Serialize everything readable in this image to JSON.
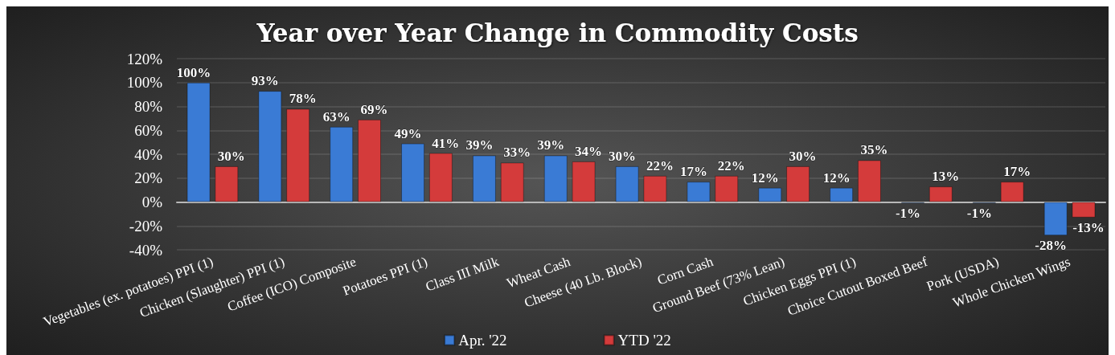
{
  "chart_data": {
    "type": "bar",
    "title": "Year over Year Change in Commodity Costs",
    "categories": [
      "Vegetables (ex. potatoes) PPI (1)",
      "Chicken (Slaughter) PPI (1)",
      "Coffee (ICO) Composite",
      "Potatoes PPI (1)",
      "Class III Milk",
      "Wheat Cash",
      "Cheese (40 Lb. Block)",
      "Corn Cash",
      "Ground Beef (73% Lean)",
      "Chicken Eggs PPI (1)",
      "Choice Cutout Boxed Beef",
      "Pork (USDA)",
      "Whole Chicken Wings"
    ],
    "series": [
      {
        "name": "Apr. '22",
        "color": "#3a7bd5",
        "values": [
          100,
          93,
          63,
          49,
          39,
          39,
          30,
          17,
          12,
          12,
          -1,
          -1,
          -28
        ],
        "value_labels": [
          "100%",
          "93%",
          "63%",
          "49%",
          "39%",
          "39%",
          "30%",
          "17%",
          "12%",
          "12%",
          "-1%",
          "-1%",
          "-28%"
        ]
      },
      {
        "name": "YTD '22",
        "color": "#d43b3b",
        "values": [
          30,
          78,
          69,
          41,
          33,
          34,
          22,
          22,
          30,
          35,
          13,
          17,
          -13
        ],
        "value_labels": [
          "30%",
          "78%",
          "69%",
          "41%",
          "33%",
          "34%",
          "22%",
          "22%",
          "30%",
          "35%",
          "13%",
          "17%",
          "-13%"
        ]
      }
    ],
    "ylim": [
      -40,
      120
    ],
    "yticks": [
      {
        "value": -40,
        "label": "-40%"
      },
      {
        "value": -20,
        "label": "-20%"
      },
      {
        "value": 0,
        "label": "0%"
      },
      {
        "value": 20,
        "label": "20%"
      },
      {
        "value": 40,
        "label": "40%"
      },
      {
        "value": 60,
        "label": "60%"
      },
      {
        "value": 80,
        "label": "80%"
      },
      {
        "value": 100,
        "label": "100%"
      },
      {
        "value": 120,
        "label": "120%"
      }
    ],
    "grid": "y",
    "legend": "bottom"
  }
}
